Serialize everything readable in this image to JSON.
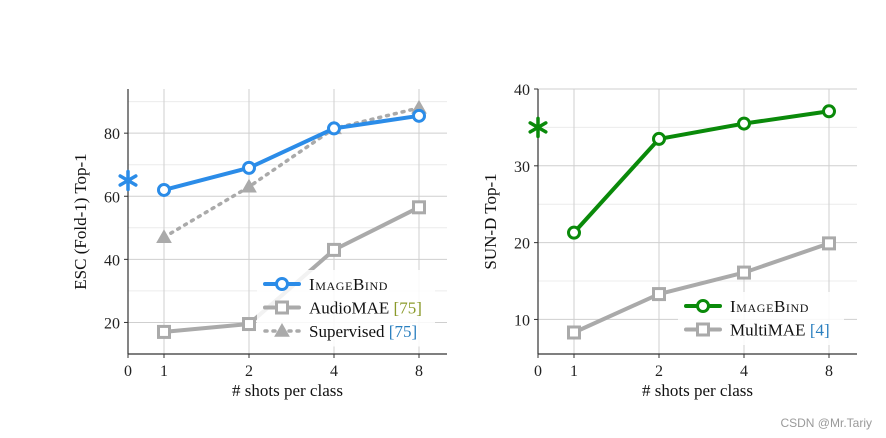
{
  "chart_data": [
    {
      "type": "line",
      "xlabel": "# shots per class",
      "ylabel": "ESC (Fold-1) Top-1",
      "x_ticks": [
        0,
        1,
        2,
        4,
        8
      ],
      "y_ticks": [
        20,
        40,
        60,
        80
      ],
      "xlim": [
        0,
        8.8
      ],
      "ylim": [
        10,
        94
      ],
      "zero_shot": {
        "x": 0,
        "y": 65,
        "color": "#2b8ce8"
      },
      "series": [
        {
          "name": "IMAGEBIND",
          "x": [
            1,
            2,
            4,
            8
          ],
          "y": [
            62,
            69,
            81.5,
            85.5
          ],
          "color": "#2b8ce8",
          "marker": "circle",
          "dash": false
        },
        {
          "name": "AudioMAE",
          "ref": "[75]",
          "x": [
            1,
            2,
            4,
            8
          ],
          "y": [
            17,
            19.5,
            43,
            56.5
          ],
          "color": "#aaaaaa",
          "marker": "square",
          "dash": false
        },
        {
          "name": "Supervised",
          "ref": "[75]",
          "x": [
            1,
            2,
            4,
            8
          ],
          "y": [
            47,
            63,
            81.5,
            88
          ],
          "color": "#aaaaaa",
          "marker": "triangle",
          "dash": true
        }
      ],
      "legend_position": "bottom-right"
    },
    {
      "type": "line",
      "xlabel": "# shots per class",
      "ylabel": "SUN-D Top-1",
      "x_ticks": [
        0,
        1,
        2,
        4,
        8
      ],
      "y_ticks": [
        10,
        20,
        30,
        40
      ],
      "xlim": [
        0,
        8.8
      ],
      "ylim": [
        5.5,
        40
      ],
      "zero_shot": {
        "x": 0,
        "y": 35,
        "color": "#0a8a0a"
      },
      "series": [
        {
          "name": "IMAGEBIND",
          "x": [
            1,
            2,
            4,
            8
          ],
          "y": [
            21.3,
            33.5,
            35.5,
            37.1
          ],
          "color": "#0a8a0a",
          "marker": "circle",
          "dash": false
        },
        {
          "name": "MultiMAE",
          "ref": "[4]",
          "x": [
            1,
            2,
            4,
            8
          ],
          "y": [
            8.3,
            13.3,
            16.1,
            19.9
          ],
          "color": "#aaaaaa",
          "marker": "square",
          "dash": false
        }
      ],
      "legend_position": "bottom-right"
    }
  ],
  "watermark": "CSDN @Mr.Tariy"
}
